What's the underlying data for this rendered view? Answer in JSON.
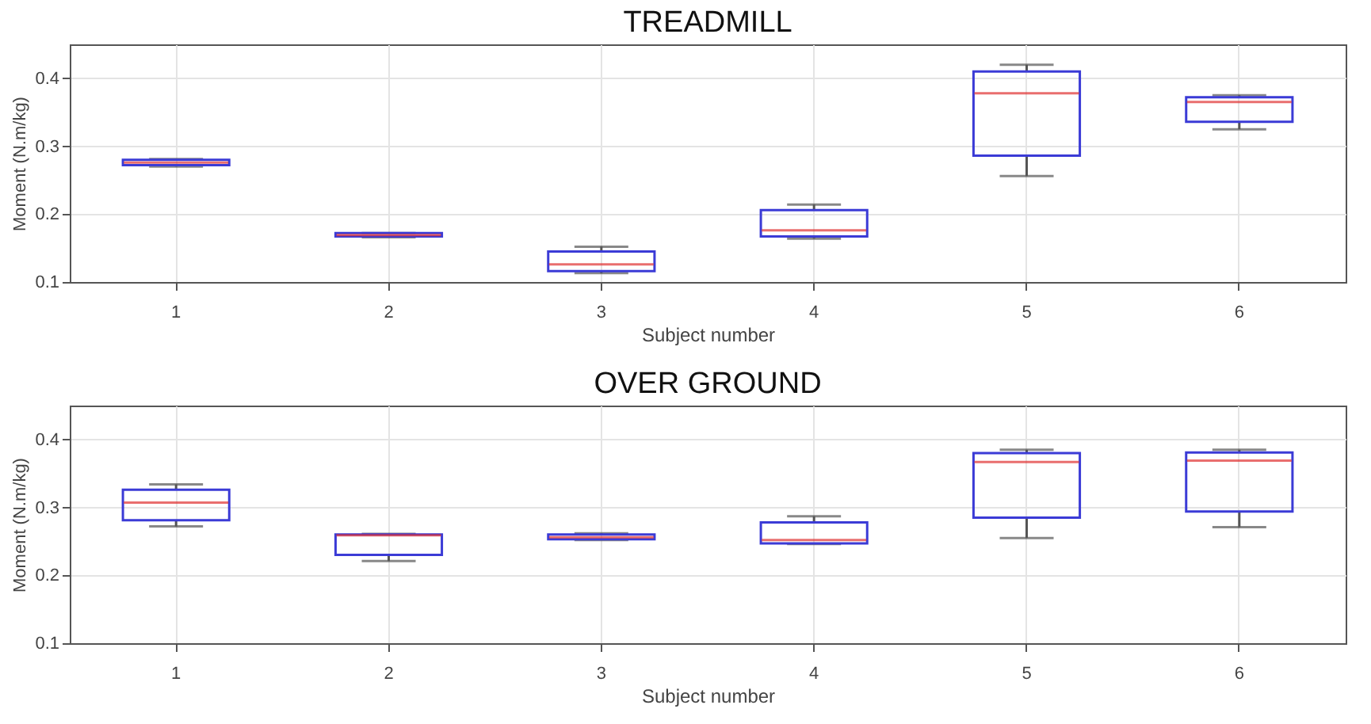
{
  "chart_data": [
    {
      "type": "box",
      "title": "TREADMILL",
      "xlabel": "Subject number",
      "ylabel": "Moment (N.m/kg)",
      "categories": [
        "1",
        "2",
        "3",
        "4",
        "5",
        "6"
      ],
      "ylim": [
        0.1,
        0.45
      ],
      "yticks": [
        0.1,
        0.2,
        0.3,
        0.4
      ],
      "grid": true,
      "series": [
        {
          "boxes": [
            {
              "low": 0.27,
              "q1": 0.272,
              "median": 0.276,
              "q3": 0.28,
              "high": 0.281
            },
            {
              "low": 0.166,
              "q1": 0.167,
              "median": 0.169,
              "q3": 0.172,
              "high": 0.172
            },
            {
              "low": 0.113,
              "q1": 0.116,
              "median": 0.126,
              "q3": 0.145,
              "high": 0.152
            },
            {
              "low": 0.164,
              "q1": 0.167,
              "median": 0.176,
              "q3": 0.206,
              "high": 0.214
            },
            {
              "low": 0.256,
              "q1": 0.286,
              "median": 0.378,
              "q3": 0.41,
              "high": 0.42
            },
            {
              "low": 0.325,
              "q1": 0.336,
              "median": 0.365,
              "q3": 0.372,
              "high": 0.375
            }
          ]
        }
      ]
    },
    {
      "type": "box",
      "title": "OVER GROUND",
      "xlabel": "Subject number",
      "ylabel": "Moment (N.m/kg)",
      "categories": [
        "1",
        "2",
        "3",
        "4",
        "5",
        "6"
      ],
      "ylim": [
        0.1,
        0.45
      ],
      "yticks": [
        0.1,
        0.2,
        0.3,
        0.4
      ],
      "grid": true,
      "series": [
        {
          "boxes": [
            {
              "low": 0.272,
              "q1": 0.281,
              "median": 0.307,
              "q3": 0.326,
              "high": 0.334
            },
            {
              "low": 0.221,
              "q1": 0.23,
              "median": 0.259,
              "q3": 0.26,
              "high": 0.261
            },
            {
              "low": 0.252,
              "q1": 0.253,
              "median": 0.256,
              "q3": 0.26,
              "high": 0.262
            },
            {
              "low": 0.246,
              "q1": 0.247,
              "median": 0.252,
              "q3": 0.278,
              "high": 0.287
            },
            {
              "low": 0.255,
              "q1": 0.285,
              "median": 0.367,
              "q3": 0.38,
              "high": 0.385
            },
            {
              "low": 0.271,
              "q1": 0.294,
              "median": 0.369,
              "q3": 0.381,
              "high": 0.385
            }
          ]
        }
      ]
    }
  ]
}
